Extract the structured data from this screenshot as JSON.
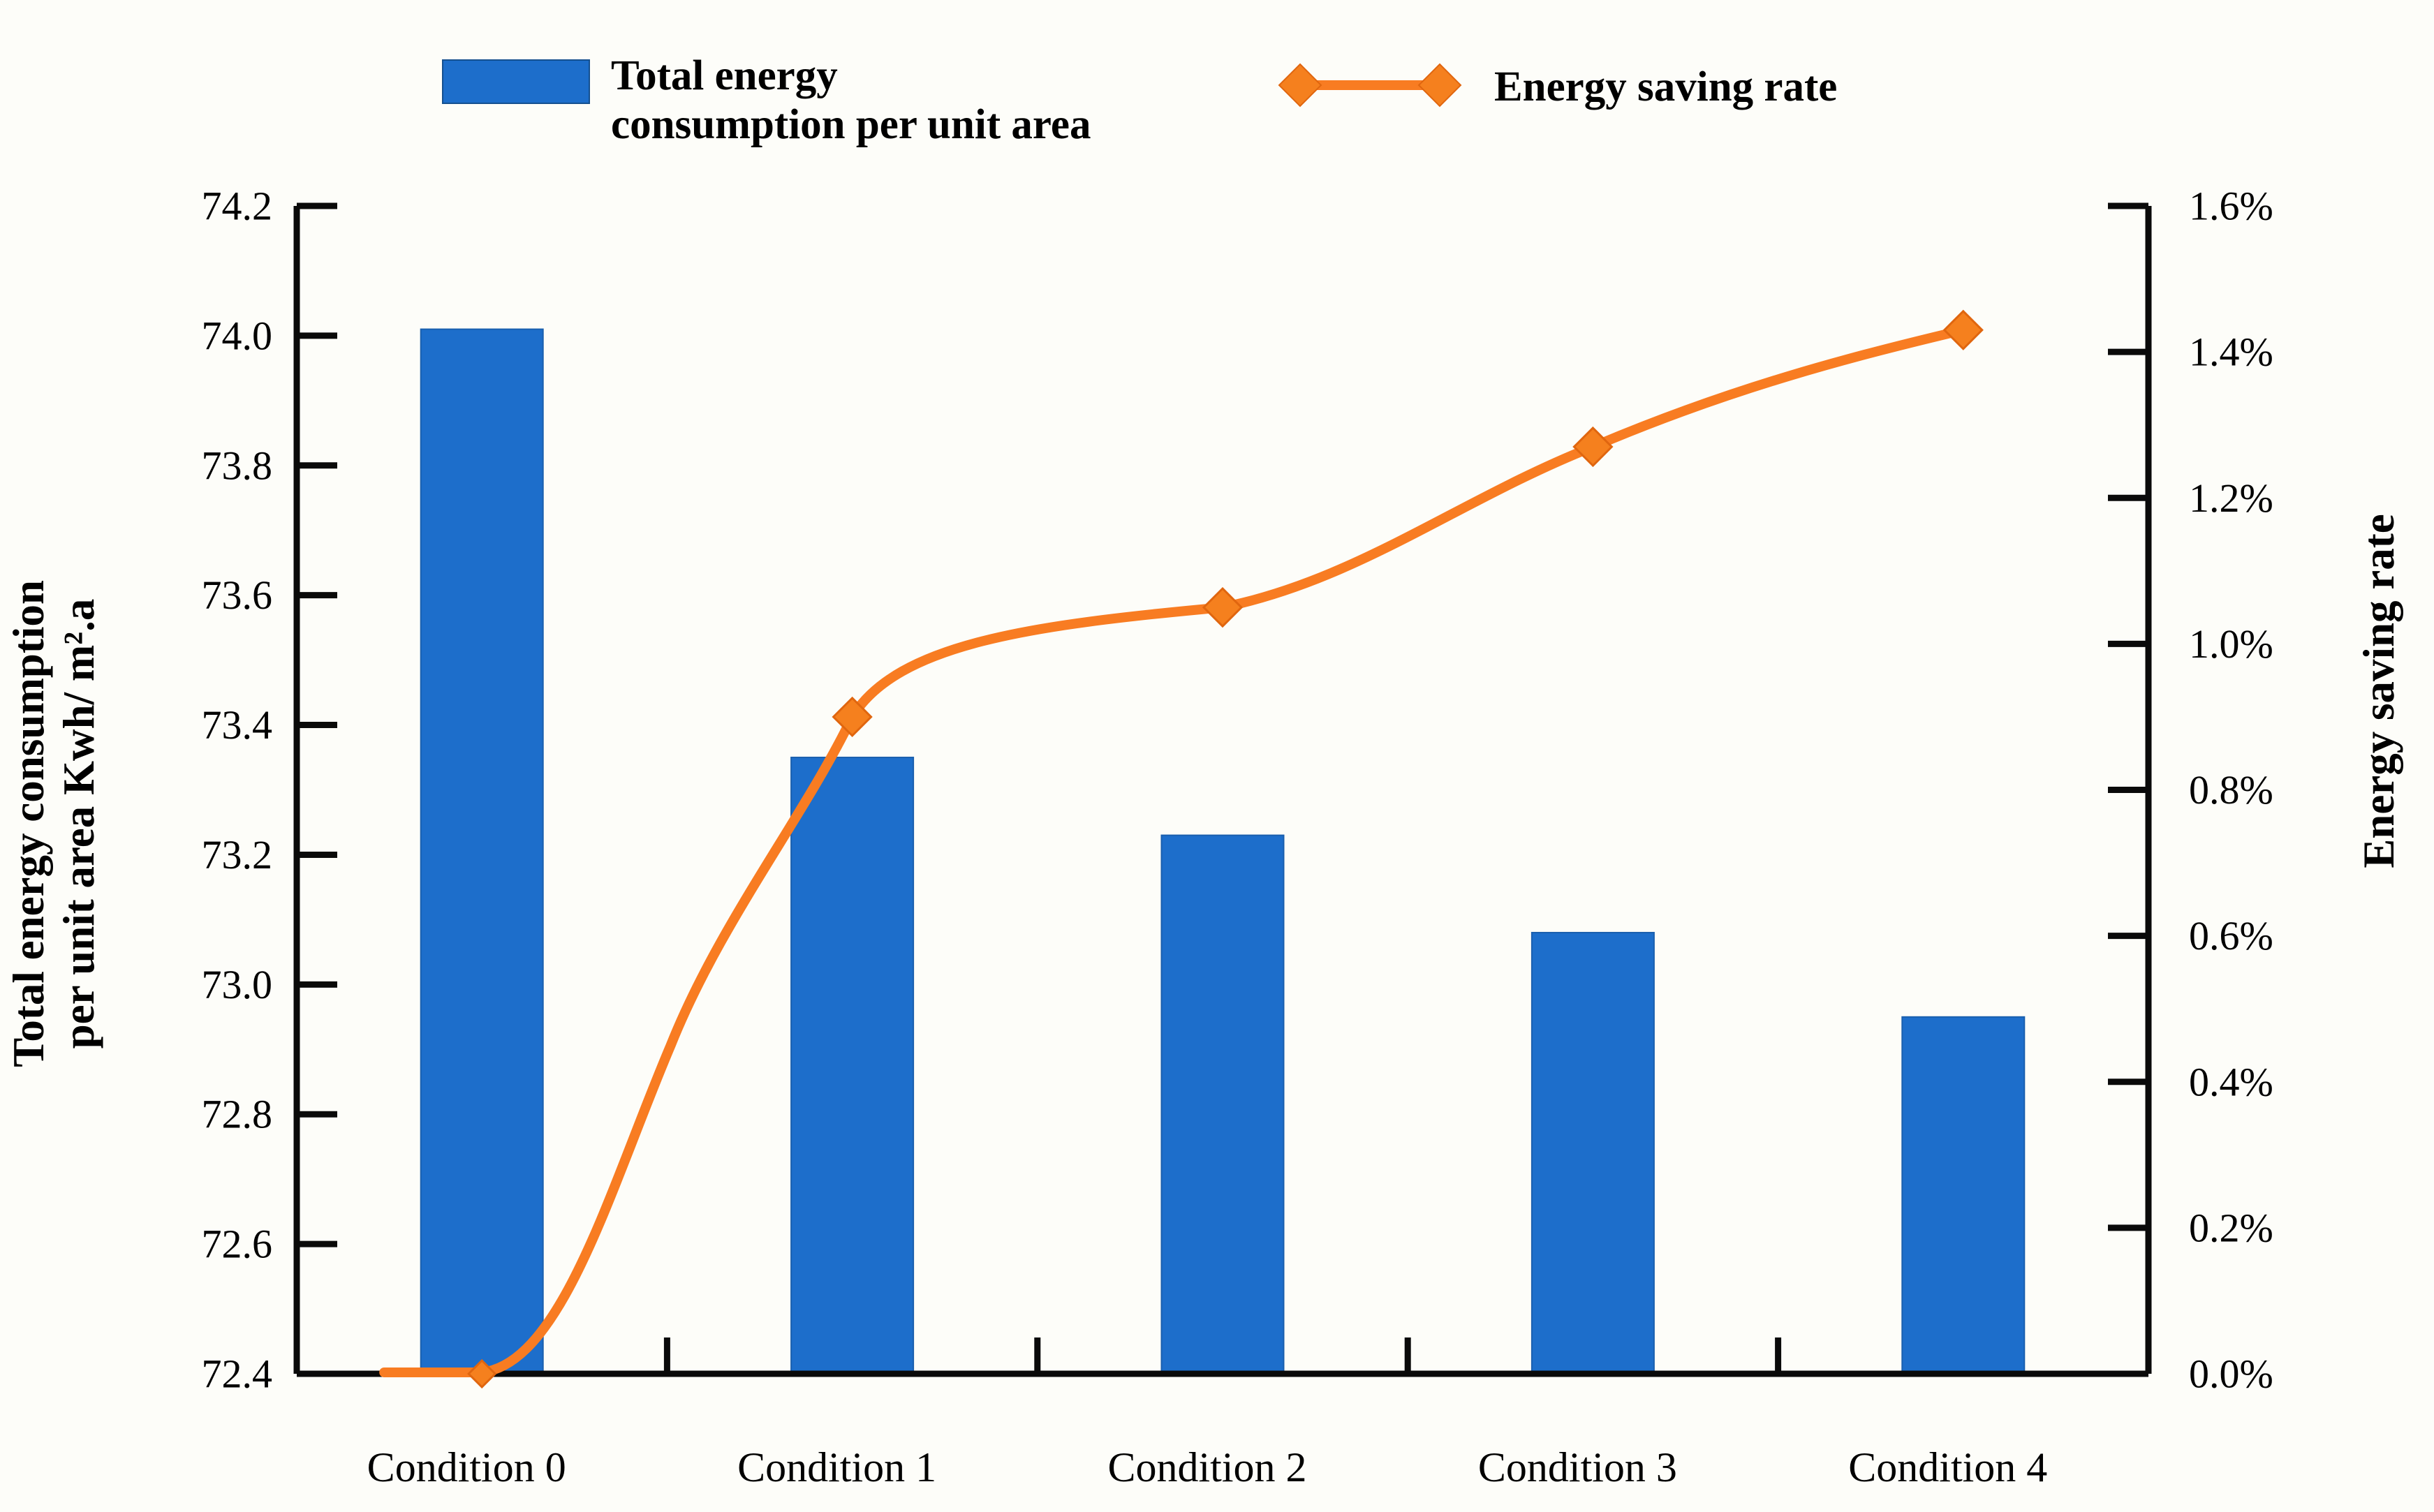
{
  "chart_data": {
    "type": "combo-bar-line",
    "title": "",
    "categories": [
      "Condition 0",
      "Condition 1",
      "Condition 2",
      "Condition 3",
      "Condition 4"
    ],
    "series": [
      {
        "name": "Total energy consumption per unit area",
        "type": "bar",
        "axis": "left",
        "values": [
          74.01,
          73.35,
          73.23,
          73.08,
          72.95
        ],
        "color": "#1d6ecb"
      },
      {
        "name": "Energy saving rate",
        "type": "line",
        "axis": "right",
        "values": [
          0.0,
          0.9,
          1.05,
          1.27,
          1.43
        ],
        "color": "#f87c22",
        "marker": "diamond",
        "marker_color": "#f5801e"
      }
    ],
    "left_axis": {
      "title_line1": "Total energy consumption",
      "title_line2": "per unit area Kwh/ m².a",
      "min": 72.4,
      "max": 74.2,
      "ticks": [
        "74.2",
        "74.0",
        "73.8",
        "73.6",
        "73.4",
        "73.2",
        "73.0",
        "72.8",
        "72.6",
        "72.4"
      ]
    },
    "right_axis": {
      "title": "Energy saving rate",
      "min": 0.0,
      "max": 1.6,
      "ticks": [
        "1.6%",
        "1.4%",
        "1.2%",
        "1.0%",
        "0.8%",
        "0.6%",
        "0.4%",
        "0.2%",
        "0.0%"
      ]
    },
    "legend": [
      {
        "label_line1": "Total energy",
        "label_line2": "consumption per unit area",
        "swatch": "bar-swatch"
      },
      {
        "label": "Energy saving rate",
        "swatch": "line-diamond-swatch"
      }
    ],
    "grid": false,
    "background": "#fdfdf9",
    "axis_color": "#0a0a0a"
  }
}
